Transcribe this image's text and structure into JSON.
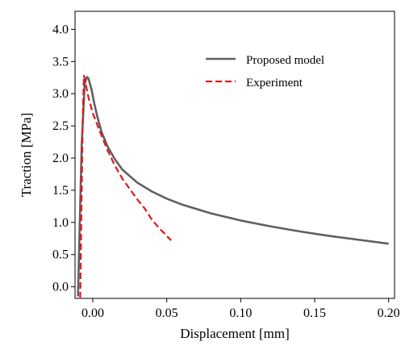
{
  "chart_data": {
    "type": "line",
    "title": "",
    "xlabel": "Displacement [mm]",
    "ylabel": "Traction [MPa]",
    "xlim": [
      -0.012,
      0.204
    ],
    "ylim": [
      -0.18,
      4.28
    ],
    "xticks": [
      0.0,
      0.05,
      0.1,
      0.15,
      0.2
    ],
    "xtick_labels": [
      "0.00",
      "0.05",
      "0.10",
      "0.15",
      "0.20"
    ],
    "yticks": [
      0.0,
      0.5,
      1.0,
      1.5,
      2.0,
      2.5,
      3.0,
      3.5,
      4.0
    ],
    "ytick_labels": [
      "0.0",
      "0.5",
      "1.0",
      "1.5",
      "2.0",
      "2.5",
      "3.0",
      "3.5",
      "4.0"
    ],
    "grid": false,
    "legend_position": "top-right",
    "series": [
      {
        "name": "Proposed model",
        "color": "#606060",
        "style": "solid",
        "x": [
          -0.01,
          -0.0075,
          -0.0055,
          -0.004,
          -0.003,
          -0.001,
          0.001,
          0.003,
          0.006,
          0.01,
          0.015,
          0.02,
          0.03,
          0.04,
          0.05,
          0.06,
          0.08,
          0.1,
          0.12,
          0.14,
          0.16,
          0.18,
          0.2
        ],
        "y": [
          -0.15,
          2.2,
          3.15,
          3.26,
          3.24,
          3.08,
          2.85,
          2.65,
          2.4,
          2.18,
          1.98,
          1.82,
          1.62,
          1.48,
          1.37,
          1.28,
          1.14,
          1.03,
          0.94,
          0.86,
          0.79,
          0.73,
          0.67
        ]
      },
      {
        "name": "Experiment",
        "color": "#e8141b",
        "style": "dashed",
        "x": [
          -0.0085,
          -0.0078,
          -0.0068,
          -0.006,
          -0.005,
          -0.003,
          0.0,
          0.005,
          0.01,
          0.015,
          0.02,
          0.025,
          0.03,
          0.035,
          0.04,
          0.045,
          0.05,
          0.053
        ],
        "y": [
          -0.18,
          1.0,
          2.6,
          3.28,
          3.18,
          2.95,
          2.7,
          2.4,
          2.12,
          1.88,
          1.68,
          1.52,
          1.36,
          1.22,
          1.04,
          0.91,
          0.79,
          0.72
        ]
      }
    ]
  }
}
